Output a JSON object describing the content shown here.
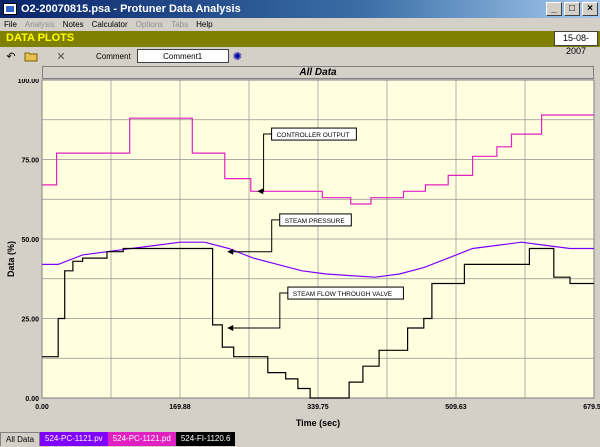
{
  "window": {
    "title": "O2-20070815.psa - Protuner Data  Analysis"
  },
  "menu": [
    {
      "label": "File",
      "enabled": true
    },
    {
      "label": "Analysis",
      "enabled": false
    },
    {
      "label": "Notes",
      "enabled": true
    },
    {
      "label": "Calculator",
      "enabled": true
    },
    {
      "label": "Options",
      "enabled": false
    },
    {
      "label": "Tabs",
      "enabled": false
    },
    {
      "label": "Help",
      "enabled": true
    }
  ],
  "header": {
    "title": "DATA PLOTS",
    "date": "15-08-2007"
  },
  "toolbar": {
    "comment_label": "Comment",
    "comment_value": "Comment1"
  },
  "plot": {
    "title": "All Data"
  },
  "chart_data": {
    "type": "line",
    "xlabel": "Time (sec)",
    "ylabel": "Data (%)",
    "xlim": [
      0,
      679.5
    ],
    "ylim": [
      0,
      100
    ],
    "xticks": [
      "0.00",
      "169.88",
      "339.75",
      "509.63",
      "679.50"
    ],
    "yticks": [
      "0.00",
      "25.00",
      "50.00",
      "75.00",
      "100.00"
    ],
    "grid": true,
    "series": [
      {
        "name": "CONTROLLER OUTPUT",
        "color": "#e020c0",
        "x": [
          0,
          18,
          18,
          108,
          108,
          185,
          185,
          225,
          225,
          257,
          257,
          345,
          345,
          380,
          380,
          405,
          405,
          445,
          445,
          472,
          472,
          500,
          500,
          530,
          530,
          560,
          560,
          578,
          578,
          615,
          615,
          679.5
        ],
        "y": [
          67,
          67,
          77,
          77,
          88,
          88,
          77,
          77,
          69,
          69,
          65,
          65,
          63,
          63,
          61,
          61,
          63,
          63,
          65,
          65,
          67,
          67,
          70,
          70,
          76,
          76,
          79,
          79,
          83,
          83,
          89,
          89
        ]
      },
      {
        "name": "STEAM PRESSURE",
        "color": "#8000ff",
        "x": [
          0,
          20,
          50,
          80,
          110,
          140,
          170,
          200,
          230,
          260,
          290,
          320,
          350,
          380,
          410,
          440,
          470,
          500,
          530,
          560,
          590,
          620,
          650,
          679.5
        ],
        "y": [
          42,
          42,
          45,
          46,
          47,
          48,
          49,
          49,
          47,
          44,
          42,
          40,
          39,
          38.5,
          38,
          39,
          41,
          44,
          47,
          48,
          49,
          48,
          47,
          47
        ]
      },
      {
        "name": "STEAM FLOW THROUGH VALVE",
        "color": "#000000",
        "x": [
          0,
          20,
          20,
          28,
          28,
          38,
          38,
          50,
          50,
          80,
          80,
          100,
          100,
          210,
          210,
          222,
          222,
          236,
          236,
          278,
          278,
          300,
          300,
          315,
          315,
          330,
          330,
          345,
          345,
          378,
          378,
          395,
          395,
          415,
          415,
          450,
          450,
          470,
          470,
          480,
          480,
          520,
          520,
          600,
          600,
          630,
          630,
          650,
          650,
          679.5
        ],
        "y": [
          13,
          13,
          25,
          25,
          40,
          40,
          43,
          43,
          44,
          44,
          46,
          46,
          47,
          47,
          23,
          23,
          16,
          16,
          13,
          13,
          8,
          8,
          6,
          6,
          3,
          3,
          0,
          0,
          0,
          0,
          5,
          5,
          10,
          10,
          15,
          15,
          22,
          22,
          25,
          25,
          36,
          36,
          42,
          42,
          47,
          47,
          38,
          38,
          36,
          36
        ]
      }
    ],
    "annotations": [
      {
        "text": "CONTROLLER OUTPUT",
        "box_x": 290,
        "box_y": 83,
        "arrow_x": 265,
        "arrow_y": 65
      },
      {
        "text": "STEAM PRESSURE",
        "box_x": 300,
        "box_y": 56,
        "arrow_x": 228,
        "arrow_y": 46
      },
      {
        "text": "STEAM FLOW THROUGH VALVE",
        "box_x": 310,
        "box_y": 33,
        "arrow_x": 228,
        "arrow_y": 22
      }
    ]
  },
  "tabs": [
    {
      "label": "All Data",
      "color": "#d4d0c8"
    },
    {
      "label": "524-PC-1121.pv",
      "color": "#8000ff"
    },
    {
      "label": "524-PC-1121.pd",
      "color": "#e020c0"
    },
    {
      "label": "524-FI-1120.6",
      "color": "#000000"
    }
  ]
}
